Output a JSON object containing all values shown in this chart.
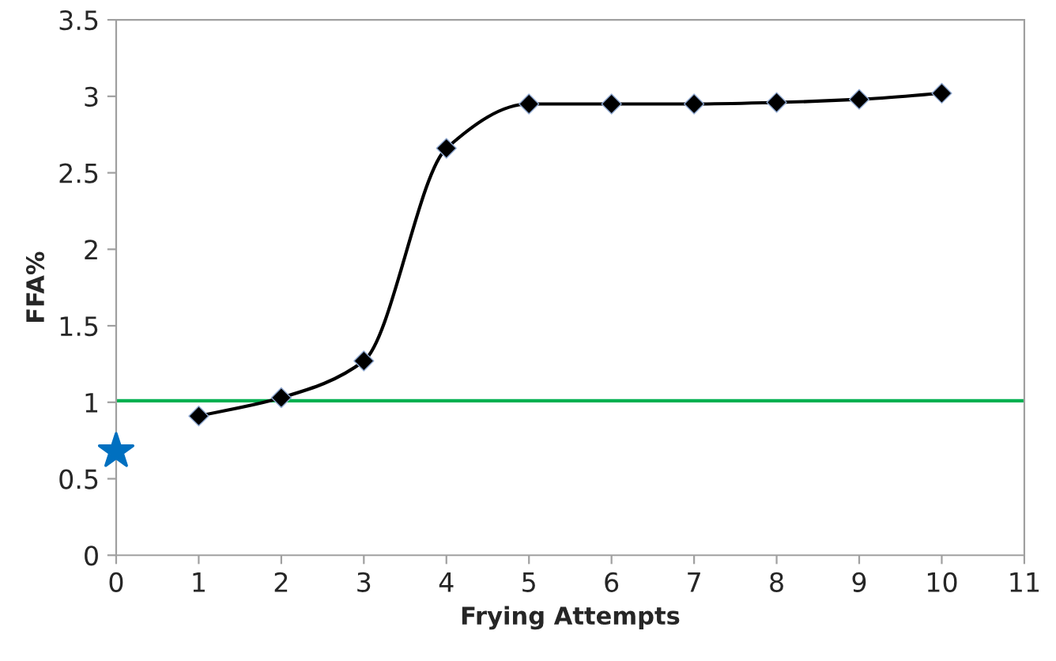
{
  "chart_data": {
    "type": "line",
    "xlabel": "Frying Attempts",
    "ylabel": "FFA%",
    "xlim": [
      0,
      11
    ],
    "xticks": [
      0,
      1,
      2,
      3,
      4,
      5,
      6,
      7,
      8,
      9,
      10,
      11
    ],
    "ylim": [
      0,
      3.5
    ],
    "yticks": [
      0,
      0.5,
      1,
      1.5,
      2,
      2.5,
      3,
      3.5
    ],
    "grid": false,
    "legend": false,
    "series": [
      {
        "color": "#000000",
        "marker": "diamond",
        "line_style": "solid",
        "x": [
          1,
          2,
          3,
          4,
          5,
          6,
          7,
          8,
          9,
          10
        ],
        "values": [
          0.91,
          1.03,
          1.27,
          2.66,
          2.95,
          2.95,
          2.95,
          2.96,
          2.98,
          3.02
        ]
      },
      {
        "type": "scatter",
        "color": "#0070c0",
        "marker": "star",
        "x": [
          0
        ],
        "values": [
          0.68
        ]
      }
    ],
    "ref_lines": [
      {
        "axis": "y",
        "value": 1.01,
        "color": "#00b050",
        "line_style": "solid"
      }
    ]
  }
}
